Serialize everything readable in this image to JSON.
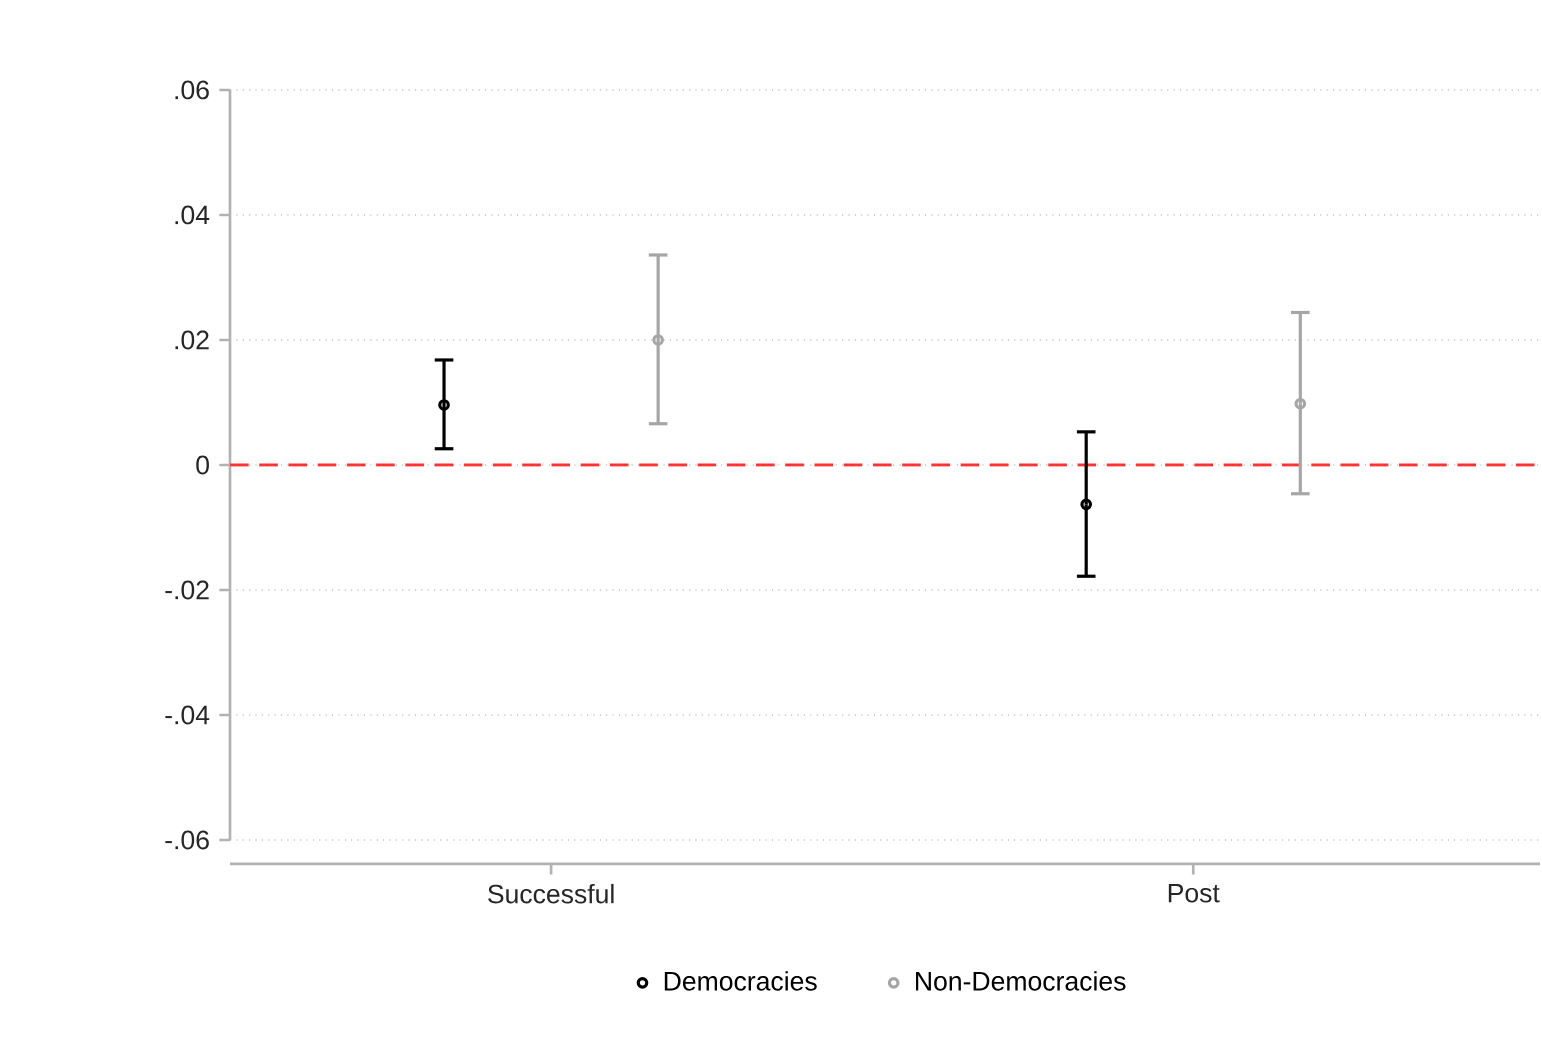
{
  "chart_data": {
    "type": "scatter",
    "categories": [
      "Successful",
      "Post"
    ],
    "ylim": [
      -0.06,
      0.06
    ],
    "yticks": [
      {
        "value": -0.06,
        "label": "-.06"
      },
      {
        "value": -0.04,
        "label": "-.04"
      },
      {
        "value": -0.02,
        "label": "-.02"
      },
      {
        "value": 0,
        "label": "0"
      },
      {
        "value": 0.02,
        "label": ".02"
      },
      {
        "value": 0.04,
        "label": ".04"
      },
      {
        "value": 0.06,
        "label": ".06"
      }
    ],
    "grid": "y",
    "legend": "bottom",
    "marker": "circle",
    "ref_lines": [
      {
        "axis": "y",
        "value": 0,
        "color": "#ff3333",
        "line_style": "dashed"
      }
    ],
    "series": [
      {
        "name": "Democracies",
        "color": "#000000",
        "values": [
          0.0096,
          -0.0063
        ],
        "errors": [
          [
            0.0026,
            0.0168
          ],
          [
            -0.0178,
            0.0053
          ]
        ]
      },
      {
        "name": "Non-Democracies",
        "color": "#a6a6a6",
        "values": [
          0.02,
          0.0098
        ],
        "errors": [
          [
            0.0066,
            0.0336
          ],
          [
            -0.0046,
            0.0244
          ]
        ]
      }
    ]
  }
}
